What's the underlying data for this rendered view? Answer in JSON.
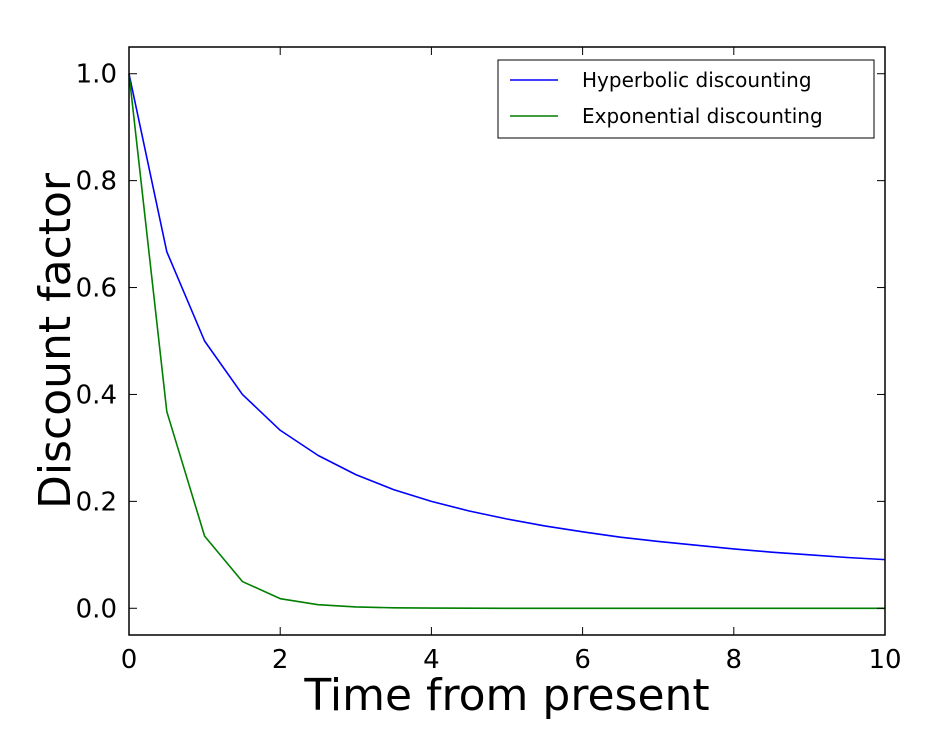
{
  "chart_data": {
    "type": "line",
    "title": "",
    "xlabel": "Time from present",
    "ylabel": "Discount factor",
    "xlim": [
      0,
      10
    ],
    "ylim": [
      -0.05,
      1.05
    ],
    "xticks": [
      0,
      2,
      4,
      6,
      8,
      10
    ],
    "xtick_labels": [
      "0",
      "2",
      "4",
      "6",
      "8",
      "10"
    ],
    "yticks": [
      0.0,
      0.2,
      0.4,
      0.6,
      0.8,
      1.0
    ],
    "ytick_labels": [
      "0.0",
      "0.2",
      "0.4",
      "0.6",
      "0.8",
      "1.0"
    ],
    "grid": false,
    "legend_position": "top-right",
    "x": [
      0,
      0.5,
      1,
      1.5,
      2,
      2.5,
      3,
      3.5,
      4,
      4.5,
      5,
      5.5,
      6,
      6.5,
      7,
      7.5,
      8,
      8.5,
      9,
      9.5,
      10
    ],
    "series": [
      {
        "name": "Hyperbolic discounting",
        "color": "#0000ff",
        "values": [
          1.0,
          0.667,
          0.5,
          0.4,
          0.333,
          0.286,
          0.25,
          0.222,
          0.2,
          0.182,
          0.167,
          0.154,
          0.143,
          0.133,
          0.125,
          0.118,
          0.111,
          0.105,
          0.1,
          0.095,
          0.091
        ]
      },
      {
        "name": "Exponential discounting",
        "color": "#007f00",
        "values": [
          1.0,
          0.368,
          0.135,
          0.05,
          0.018,
          0.0067,
          0.0025,
          0.0009,
          0.0003,
          0.0001,
          0.0,
          0.0,
          0.0,
          0.0,
          0.0,
          0.0,
          0.0,
          0.0,
          0.0,
          0.0,
          0.0
        ]
      }
    ]
  }
}
